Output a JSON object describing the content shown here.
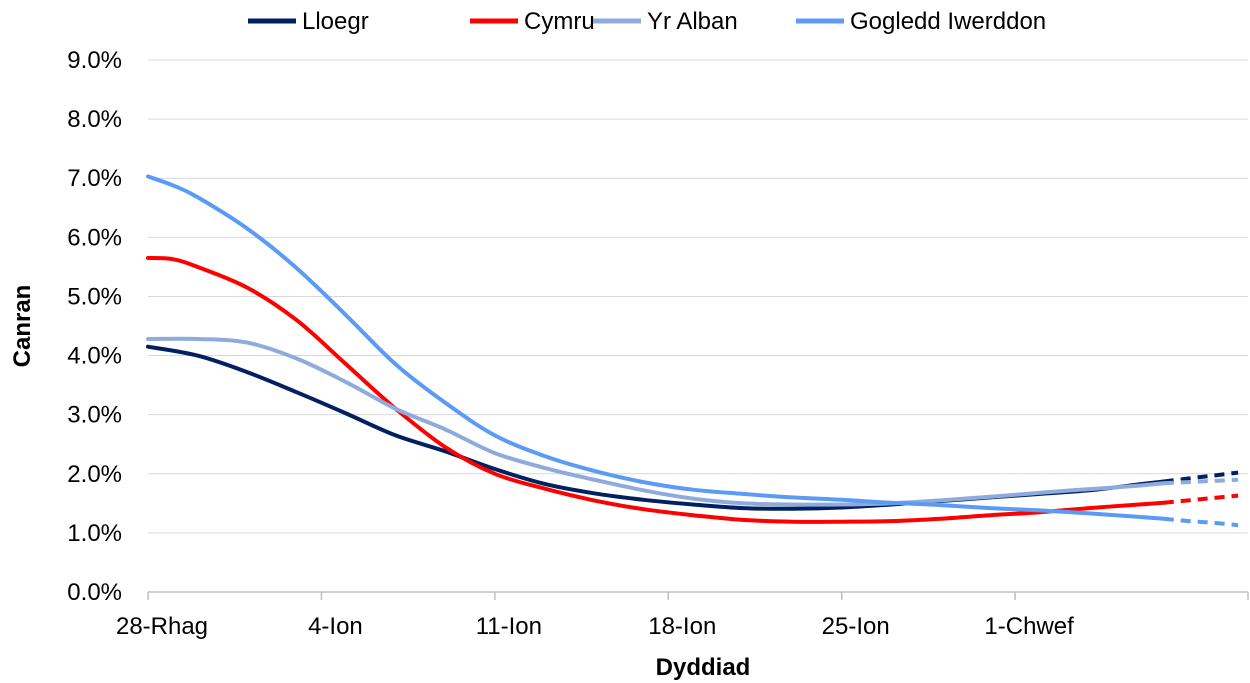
{
  "chart_data": {
    "type": "line",
    "xlabel": "Dyddiad",
    "ylabel": "Canran",
    "ylim": [
      0,
      9
    ],
    "y_ticks": [
      "0.0%",
      "1.0%",
      "2.0%",
      "3.0%",
      "4.0%",
      "5.0%",
      "6.0%",
      "7.0%",
      "8.0%",
      "9.0%"
    ],
    "x_ticks": [
      "28-Rhag",
      "4-Ion",
      "11-Ion",
      "18-Ion",
      "25-Ion",
      "1-Chwef"
    ],
    "x_range": [
      "28-Rhag",
      "10-Chwef"
    ],
    "grid": "horizontal",
    "legend_position": "top",
    "projected_from": "7-Chwef",
    "series": [
      {
        "name": "Lloegr",
        "color": "#002060",
        "x": [
          "28-Rhag",
          "30-Rhag",
          "1-Ion",
          "3-Ion",
          "5-Ion",
          "7-Ion",
          "9-Ion",
          "11-Ion",
          "13-Ion",
          "15-Ion",
          "17-Ion",
          "19-Ion",
          "21-Ion",
          "23-Ion",
          "25-Ion",
          "27-Ion",
          "29-Ion",
          "31-Ion",
          "2-Chwef",
          "4-Chwef",
          "6-Chwef",
          "7-Chwef",
          "8-Chwef",
          "9-Chwef",
          "10-Chwef"
        ],
        "values": [
          4.15,
          4.0,
          3.72,
          3.38,
          3.02,
          2.65,
          2.38,
          2.08,
          1.83,
          1.67,
          1.56,
          1.48,
          1.42,
          1.41,
          1.43,
          1.48,
          1.54,
          1.6,
          1.66,
          1.72,
          1.82,
          1.87,
          1.92,
          1.97,
          2.02
        ]
      },
      {
        "name": "Cymru",
        "color": "#ff0000",
        "x": [
          "28-Rhag",
          "29-Rhag",
          "30-Rhag",
          "1-Ion",
          "3-Ion",
          "5-Ion",
          "7-Ion",
          "9-Ion",
          "11-Ion",
          "13-Ion",
          "15-Ion",
          "17-Ion",
          "19-Ion",
          "21-Ion",
          "23-Ion",
          "25-Ion",
          "27-Ion",
          "29-Ion",
          "31-Ion",
          "2-Chwef",
          "4-Chwef",
          "6-Chwef",
          "7-Chwef",
          "8-Chwef",
          "9-Chwef",
          "10-Chwef"
        ],
        "values": [
          5.65,
          5.63,
          5.5,
          5.15,
          4.6,
          3.85,
          3.1,
          2.45,
          2.0,
          1.75,
          1.55,
          1.4,
          1.3,
          1.22,
          1.19,
          1.19,
          1.2,
          1.24,
          1.3,
          1.35,
          1.42,
          1.48,
          1.51,
          1.55,
          1.59,
          1.63
        ]
      },
      {
        "name": "Yr Alban",
        "color": "#8faadc",
        "x": [
          "28-Rhag",
          "30-Rhag",
          "1-Ion",
          "3-Ion",
          "5-Ion",
          "7-Ion",
          "9-Ion",
          "11-Ion",
          "13-Ion",
          "15-Ion",
          "17-Ion",
          "19-Ion",
          "21-Ion",
          "23-Ion",
          "25-Ion",
          "27-Ion",
          "29-Ion",
          "31-Ion",
          "2-Chwef",
          "4-Chwef",
          "6-Chwef",
          "7-Chwef",
          "8-Chwef",
          "9-Chwef",
          "10-Chwef"
        ],
        "values": [
          4.28,
          4.28,
          4.22,
          3.95,
          3.55,
          3.1,
          2.75,
          2.35,
          2.1,
          1.9,
          1.72,
          1.58,
          1.5,
          1.48,
          1.48,
          1.5,
          1.55,
          1.61,
          1.68,
          1.74,
          1.8,
          1.84,
          1.86,
          1.88,
          1.9
        ]
      },
      {
        "name": "Gogledd Iwerddon",
        "color": "#5b9bf5",
        "x": [
          "28-Rhag",
          "29-Rhag",
          "30-Rhag",
          "1-Ion",
          "3-Ion",
          "5-Ion",
          "7-Ion",
          "9-Ion",
          "11-Ion",
          "13-Ion",
          "15-Ion",
          "17-Ion",
          "19-Ion",
          "21-Ion",
          "23-Ion",
          "25-Ion",
          "27-Ion",
          "29-Ion",
          "31-Ion",
          "2-Chwef",
          "4-Chwef",
          "6-Chwef",
          "7-Chwef",
          "8-Chwef",
          "9-Chwef",
          "10-Chwef"
        ],
        "values": [
          7.03,
          6.88,
          6.68,
          6.15,
          5.48,
          4.68,
          3.85,
          3.2,
          2.65,
          2.3,
          2.05,
          1.86,
          1.73,
          1.66,
          1.6,
          1.56,
          1.51,
          1.47,
          1.42,
          1.38,
          1.33,
          1.27,
          1.24,
          1.2,
          1.17,
          1.13
        ]
      }
    ]
  }
}
